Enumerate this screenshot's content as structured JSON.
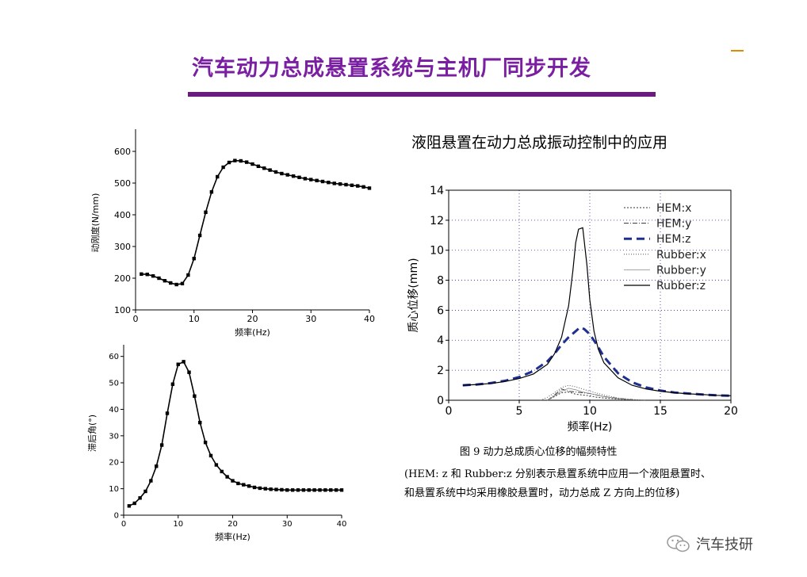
{
  "slide": {
    "title": "汽车动力总成悬置系统与主机厂同步开发",
    "chart_heading": "液阻悬置在动力总成振动控制中的应用",
    "caption": "图 9   动力总成质心位移的幅频特性",
    "note_line1": "(HEM: z 和 Rubber:z 分别表示悬置系统中应用一个液阻悬置时、",
    "note_line2": "和悬置系统中均采用橡胶悬置时，动力总成 Z 方向上的位移)",
    "watermark": "汽车技研",
    "colors": {
      "title": "#7a1fa2",
      "title_bar": "#6a1b7e",
      "hem_z": "#1f2f8f",
      "grid": "#2a2aa0"
    }
  },
  "chart_data": [
    {
      "id": "stiffness",
      "type": "line",
      "xlabel": "频率(Hz)",
      "ylabel": "动刚度(N/mm)",
      "xlim": [
        0,
        40
      ],
      "ylim": [
        100,
        650
      ],
      "xticks": [
        0,
        10,
        20,
        30,
        40
      ],
      "yticks": [
        100,
        200,
        300,
        400,
        500,
        600
      ],
      "grid": false,
      "series": [
        {
          "markers": true,
          "x": [
            1,
            2,
            3,
            4,
            5,
            6,
            7,
            8,
            9,
            10,
            11,
            12,
            13,
            14,
            15,
            16,
            17,
            18,
            19,
            20,
            21,
            22,
            23,
            24,
            25,
            26,
            27,
            28,
            29,
            30,
            31,
            32,
            33,
            34,
            35,
            36,
            37,
            38,
            39,
            40
          ],
          "y": [
            213,
            212,
            207,
            200,
            192,
            185,
            180,
            183,
            210,
            262,
            335,
            408,
            472,
            520,
            550,
            565,
            571,
            570,
            566,
            560,
            553,
            547,
            541,
            535,
            530,
            526,
            522,
            518,
            514,
            511,
            508,
            505,
            502,
            499,
            497,
            495,
            493,
            491,
            488,
            484
          ]
        }
      ]
    },
    {
      "id": "lag",
      "type": "line",
      "xlabel": "频率(Hz)",
      "ylabel": "滞后角(°)",
      "xlim": [
        0,
        40
      ],
      "ylim": [
        0,
        62
      ],
      "xticks": [
        0,
        10,
        20,
        30,
        40
      ],
      "yticks": [
        0,
        10,
        20,
        30,
        40,
        50,
        60
      ],
      "grid": false,
      "series": [
        {
          "markers": true,
          "x": [
            1,
            2,
            3,
            4,
            5,
            6,
            7,
            8,
            9,
            10,
            11,
            12,
            13,
            14,
            15,
            16,
            17,
            18,
            19,
            20,
            21,
            22,
            23,
            24,
            25,
            26,
            27,
            28,
            29,
            30,
            31,
            32,
            33,
            34,
            35,
            36,
            37,
            38,
            39,
            40
          ],
          "y": [
            3.5,
            4.5,
            6.5,
            9,
            13,
            18.5,
            26.5,
            38.5,
            49.5,
            57,
            58,
            54,
            45,
            35,
            27.5,
            22.5,
            19,
            16.5,
            14.5,
            13,
            12,
            11.5,
            11,
            10.5,
            10.2,
            10,
            9.8,
            9.7,
            9.6,
            9.5,
            9.5,
            9.5,
            9.5,
            9.5,
            9.5,
            9.5,
            9.5,
            9.5,
            9.5,
            9.5
          ]
        }
      ]
    },
    {
      "id": "displacement",
      "type": "line",
      "xlabel": "频率(Hz)",
      "ylabel": "质心位移(mm)",
      "xlim": [
        0,
        20
      ],
      "ylim": [
        0,
        14
      ],
      "xticks": [
        0,
        5,
        10,
        15,
        20
      ],
      "yticks": [
        0,
        2,
        4,
        6,
        8,
        10,
        12,
        14
      ],
      "grid": true,
      "legend": "top-right",
      "series": [
        {
          "name": "HEM:x",
          "dash": "2,2",
          "width": 1,
          "color": "#333333",
          "x": [
            7,
            7.5,
            8,
            8.5,
            9,
            9.5,
            10,
            10.5,
            11,
            12,
            13
          ],
          "y": [
            0,
            0.25,
            0.5,
            0.55,
            0.4,
            0.35,
            0.3,
            0.2,
            0.15,
            0.08,
            0.03
          ]
        },
        {
          "name": "HEM:y",
          "dash": "6,2,1,2",
          "width": 1,
          "color": "#333333",
          "x": [
            7,
            7.5,
            8,
            8.5,
            9,
            9.5,
            10,
            10.5,
            11,
            12,
            13
          ],
          "y": [
            0,
            0.35,
            0.75,
            0.6,
            0.55,
            0.5,
            0.45,
            0.35,
            0.25,
            0.12,
            0.05
          ]
        },
        {
          "name": "HEM:z",
          "dash": "10,6",
          "width": 3,
          "color": "#1f2f8f",
          "x": [
            1,
            2,
            3,
            4,
            5,
            6,
            7,
            7.5,
            8,
            8.5,
            9,
            9.3,
            9.6,
            10,
            10.5,
            11,
            12,
            13,
            14,
            15,
            16,
            17,
            18,
            19,
            20
          ],
          "y": [
            1,
            1.05,
            1.15,
            1.3,
            1.55,
            1.95,
            2.6,
            3.1,
            3.7,
            4.2,
            4.6,
            4.85,
            4.75,
            4.4,
            3.7,
            2.9,
            1.8,
            1.2,
            0.85,
            0.65,
            0.52,
            0.45,
            0.38,
            0.33,
            0.3
          ]
        },
        {
          "name": "Rubber:x",
          "dash": "1,2",
          "width": 1,
          "color": "#555555",
          "x": [
            6.5,
            7,
            7.5,
            8,
            8.5,
            9,
            9.5,
            10,
            11,
            12,
            13,
            14
          ],
          "y": [
            0,
            0.2,
            0.5,
            0.85,
            1,
            0.9,
            0.75,
            0.6,
            0.35,
            0.15,
            0.06,
            0
          ]
        },
        {
          "name": "Rubber:y",
          "dash": "",
          "width": 0.8,
          "color": "#888888",
          "x": [
            7,
            7.5,
            8,
            8.5,
            9,
            9.5,
            10,
            11,
            12,
            13
          ],
          "y": [
            0,
            0.3,
            0.6,
            0.8,
            0.7,
            0.55,
            0.45,
            0.25,
            0.1,
            0.03
          ]
        },
        {
          "name": "Rubber:z",
          "dash": "",
          "width": 1.2,
          "color": "#000000",
          "x": [
            1,
            2,
            3,
            4,
            5,
            6,
            7,
            7.5,
            8,
            8.5,
            8.8,
            9,
            9.2,
            9.5,
            9.8,
            10,
            10.3,
            10.6,
            11,
            12,
            13,
            14,
            15,
            16,
            17,
            18,
            19,
            20
          ],
          "y": [
            1,
            1.05,
            1.12,
            1.25,
            1.45,
            1.75,
            2.4,
            3.1,
            4.2,
            6.3,
            8.6,
            10.5,
            11.4,
            11.5,
            9,
            6.7,
            4.6,
            3.4,
            2.5,
            1.5,
            1,
            0.75,
            0.6,
            0.5,
            0.43,
            0.38,
            0.33,
            0.3
          ]
        }
      ]
    }
  ]
}
